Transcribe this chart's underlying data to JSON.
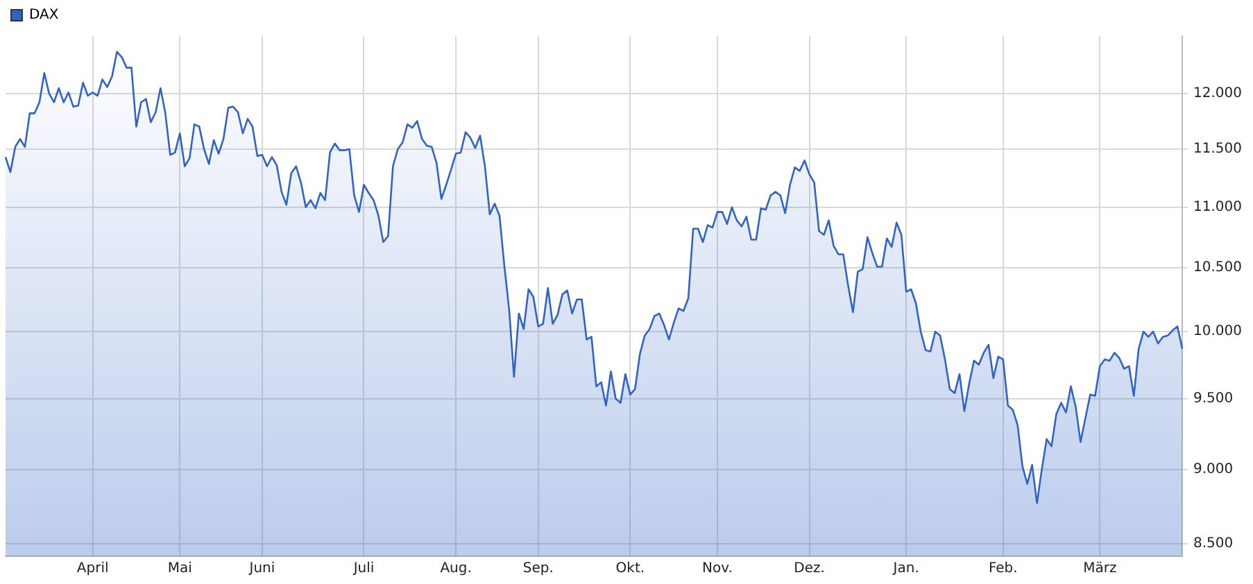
{
  "chart_data": {
    "type": "area",
    "log": "y",
    "grid": true,
    "legend": "top left",
    "marker": "none",
    "ylim": [
      8420,
      12540
    ],
    "categories": [
      null,
      null,
      null,
      null,
      null,
      null,
      null,
      null,
      null,
      null,
      null,
      null,
      null,
      null,
      null,
      null,
      null,
      null,
      "April",
      null,
      null,
      null,
      null,
      null,
      null,
      null,
      null,
      null,
      null,
      null,
      null,
      null,
      null,
      null,
      null,
      null,
      "Mai",
      null,
      null,
      null,
      null,
      null,
      null,
      null,
      null,
      null,
      null,
      null,
      null,
      null,
      null,
      null,
      null,
      "Juni",
      null,
      null,
      null,
      null,
      null,
      null,
      null,
      null,
      null,
      null,
      null,
      null,
      null,
      null,
      null,
      null,
      null,
      null,
      null,
      null,
      "Juli",
      null,
      null,
      null,
      null,
      null,
      null,
      null,
      null,
      null,
      null,
      null,
      null,
      null,
      null,
      null,
      null,
      null,
      null,
      "Aug.",
      null,
      null,
      null,
      null,
      null,
      null,
      null,
      null,
      null,
      null,
      null,
      null,
      null,
      null,
      null,
      null,
      "Sep.",
      null,
      null,
      null,
      null,
      null,
      null,
      null,
      null,
      null,
      null,
      null,
      null,
      null,
      null,
      null,
      null,
      null,
      null,
      "Okt.",
      null,
      null,
      null,
      null,
      null,
      null,
      null,
      null,
      null,
      null,
      null,
      null,
      null,
      null,
      null,
      null,
      null,
      "Nov.",
      null,
      null,
      null,
      null,
      null,
      null,
      null,
      null,
      null,
      null,
      null,
      null,
      null,
      null,
      null,
      null,
      null,
      null,
      "Dez.",
      null,
      null,
      null,
      null,
      null,
      null,
      null,
      null,
      null,
      null,
      null,
      null,
      null,
      null,
      null,
      null,
      null,
      null,
      null,
      "Jan.",
      null,
      null,
      null,
      null,
      null,
      null,
      null,
      null,
      null,
      null,
      null,
      null,
      null,
      null,
      null,
      null,
      null,
      null,
      null,
      "Feb.",
      null,
      null,
      null,
      null,
      null,
      null,
      null,
      null,
      null,
      null,
      null,
      null,
      null,
      null,
      null,
      null,
      null,
      null,
      null,
      "März",
      null,
      null,
      null,
      null,
      null,
      null,
      null,
      null,
      null,
      null,
      null,
      null,
      null,
      null,
      null,
      null,
      null
    ],
    "yticks": [
      {
        "value": 8500,
        "label": "8.500"
      },
      {
        "value": 9000,
        "label": "9.000"
      },
      {
        "value": 9500,
        "label": "9.500"
      },
      {
        "value": 10000,
        "label": "10.000"
      },
      {
        "value": 10500,
        "label": "10.500"
      },
      {
        "value": 11000,
        "label": "11.000"
      },
      {
        "value": 11500,
        "label": "11.500"
      },
      {
        "value": 12000,
        "label": "12.000"
      }
    ],
    "series": [
      {
        "name": "DAX",
        "color": "#2f63c4",
        "values": [
          11430,
          11300,
          11520,
          11590,
          11520,
          11820,
          11820,
          11920,
          12190,
          12000,
          11920,
          12050,
          11920,
          12010,
          11880,
          11890,
          12100,
          11980,
          12010,
          11980,
          12130,
          12060,
          12160,
          12390,
          12340,
          12240,
          12240,
          11700,
          11920,
          11950,
          11740,
          11830,
          12050,
          11820,
          11450,
          11470,
          11640,
          11350,
          11420,
          11720,
          11700,
          11500,
          11370,
          11580,
          11460,
          11590,
          11870,
          11880,
          11830,
          11640,
          11770,
          11700,
          11440,
          11450,
          11350,
          11430,
          11360,
          11130,
          11020,
          11290,
          11350,
          11210,
          11000,
          11060,
          10990,
          11120,
          11060,
          11470,
          11550,
          11490,
          11490,
          11500,
          11100,
          10960,
          11190,
          11120,
          11060,
          10930,
          10710,
          10760,
          11350,
          11500,
          11560,
          11720,
          11690,
          11750,
          11590,
          11530,
          11520,
          11380,
          11070,
          11190,
          11320,
          11460,
          11470,
          11650,
          11600,
          11510,
          11620,
          11350,
          10940,
          11030,
          10930,
          10520,
          10170,
          9660,
          10140,
          10020,
          10330,
          10270,
          10040,
          10060,
          10340,
          10060,
          10130,
          10290,
          10320,
          10140,
          10250,
          10250,
          9940,
          9960,
          9590,
          9620,
          9450,
          9700,
          9500,
          9470,
          9680,
          9530,
          9570,
          9830,
          9970,
          10020,
          10120,
          10140,
          10050,
          9940,
          10070,
          10180,
          10160,
          10260,
          10820,
          10820,
          10710,
          10850,
          10830,
          10960,
          10960,
          10860,
          11000,
          10890,
          10840,
          10920,
          10730,
          10730,
          10990,
          10980,
          11100,
          11130,
          11100,
          10950,
          11190,
          11340,
          11310,
          11400,
          11280,
          11210,
          10800,
          10770,
          10890,
          10680,
          10610,
          10610,
          10360,
          10150,
          10470,
          10490,
          10750,
          10620,
          10510,
          10510,
          10740,
          10670,
          10870,
          10770,
          10310,
          10330,
          10220,
          10000,
          9860,
          9850,
          10000,
          9970,
          9790,
          9570,
          9540,
          9680,
          9410,
          9610,
          9780,
          9750,
          9840,
          9900,
          9650,
          9810,
          9790,
          9450,
          9420,
          9310,
          9020,
          8900,
          9030,
          8770,
          9000,
          9210,
          9160,
          9390,
          9470,
          9400,
          9590,
          9440,
          9190,
          9360,
          9530,
          9520,
          9740,
          9790,
          9780,
          9840,
          9800,
          9720,
          9740,
          9520,
          9870,
          10000,
          9960,
          10000,
          9910,
          9960,
          9970,
          10010,
          10040,
          9870
        ]
      }
    ]
  }
}
